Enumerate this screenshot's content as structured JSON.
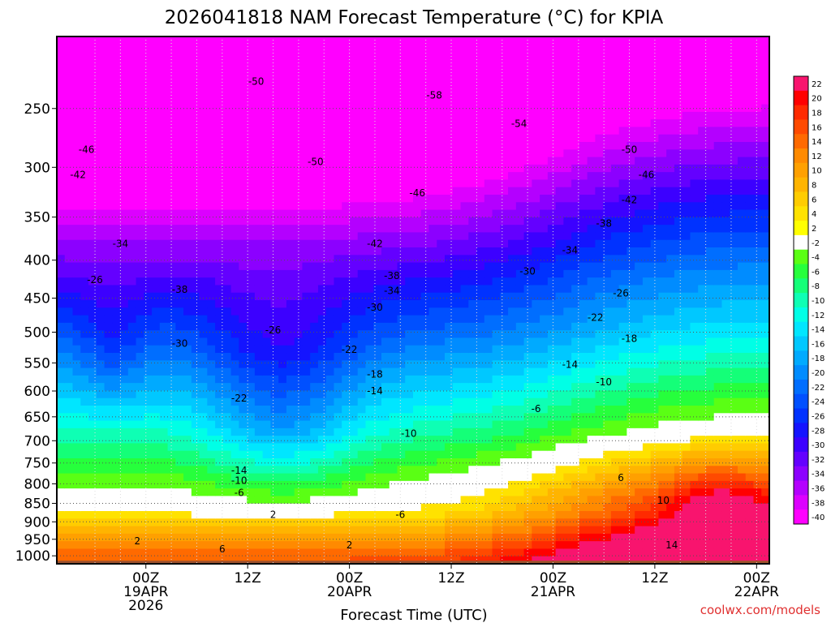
{
  "chart_data": {
    "type": "heatmap",
    "title": "2026041818 NAM Forecast Temperature (°C) for KPIA",
    "xlabel": "Forecast Time (UTC)",
    "credit": "coolwx.com/models",
    "y_scale": "pressure (hPa), reversed",
    "ylim": [
      1025,
      200
    ],
    "y_ticks": [
      250,
      300,
      350,
      400,
      450,
      500,
      550,
      600,
      650,
      700,
      750,
      800,
      850,
      900,
      950,
      1000
    ],
    "x_range_hours_from_init": [
      -4.5,
      79.5
    ],
    "x_ticks": [
      {
        "hour": 6,
        "lines": [
          "00Z",
          "19APR",
          "2026"
        ]
      },
      {
        "hour": 18,
        "lines": [
          "12Z"
        ]
      },
      {
        "hour": 30,
        "lines": [
          "00Z",
          "20APR"
        ]
      },
      {
        "hour": 42,
        "lines": [
          "12Z"
        ]
      },
      {
        "hour": 54,
        "lines": [
          "00Z",
          "21APR"
        ]
      },
      {
        "hour": 66,
        "lines": [
          "12Z"
        ]
      },
      {
        "hour": 78,
        "lines": [
          "00Z",
          "22APR"
        ]
      }
    ],
    "grid": true,
    "colorbar": {
      "labels": [
        22,
        20,
        18,
        16,
        14,
        12,
        10,
        8,
        6,
        4,
        2,
        -2,
        -4,
        -6,
        -8,
        -10,
        -12,
        -14,
        -16,
        -18,
        -20,
        -22,
        -24,
        -26,
        -28,
        -30,
        -32,
        -34,
        -36,
        -38,
        -40
      ],
      "colors": [
        "#f8146e",
        "#ff0000",
        "#ff2a00",
        "#ff4a00",
        "#ff6a00",
        "#ff8a00",
        "#ffa000",
        "#ffb400",
        "#ffcc00",
        "#ffe200",
        "#ffff00",
        "#ffffff",
        "#5aff14",
        "#26ff3c",
        "#14ff78",
        "#0effb4",
        "#00ffe6",
        "#00e6ff",
        "#00c8ff",
        "#00aaff",
        "#008cff",
        "#006eff",
        "#0050ff",
        "#0032ff",
        "#1414ff",
        "#3c00ff",
        "#6400ff",
        "#8c00ff",
        "#b400ff",
        "#dc00ff",
        "#ff00ff"
      ]
    },
    "contour_labels": [
      {
        "hour": 19,
        "p": 230,
        "v": "-50"
      },
      {
        "hour": 40,
        "p": 240,
        "v": "-58"
      },
      {
        "hour": 50,
        "p": 262,
        "v": "-54"
      },
      {
        "hour": 63,
        "p": 284,
        "v": "-50"
      },
      {
        "hour": 65,
        "p": 307,
        "v": "-46"
      },
      {
        "hour": 63,
        "p": 332,
        "v": "-42"
      },
      {
        "hour": 60,
        "p": 357,
        "v": "-38"
      },
      {
        "hour": 56,
        "p": 388,
        "v": "-34"
      },
      {
        "hour": 51,
        "p": 414,
        "v": "-30"
      },
      {
        "hour": 62,
        "p": 443,
        "v": "-26"
      },
      {
        "hour": 59,
        "p": 478,
        "v": "-22"
      },
      {
        "hour": 63,
        "p": 510,
        "v": "-18"
      },
      {
        "hour": 56,
        "p": 553,
        "v": "-14"
      },
      {
        "hour": 60,
        "p": 584,
        "v": "-10"
      },
      {
        "hour": 52,
        "p": 634,
        "v": "-6"
      },
      {
        "hour": -1,
        "p": 284,
        "v": "-46"
      },
      {
        "hour": -2,
        "p": 307,
        "v": "-42"
      },
      {
        "hour": 3,
        "p": 380,
        "v": "-34"
      },
      {
        "hour": 0,
        "p": 425,
        "v": "-26"
      },
      {
        "hour": 10,
        "p": 438,
        "v": "-38"
      },
      {
        "hour": 10,
        "p": 518,
        "v": "-30"
      },
      {
        "hour": 21,
        "p": 497,
        "v": "-26"
      },
      {
        "hour": 17,
        "p": 614,
        "v": "-22"
      },
      {
        "hour": 17,
        "p": 768,
        "v": "-14"
      },
      {
        "hour": 17,
        "p": 792,
        "v": "-10"
      },
      {
        "hour": 17,
        "p": 823,
        "v": "-6"
      },
      {
        "hour": 21,
        "p": 880,
        "v": "2"
      },
      {
        "hour": 15,
        "p": 980,
        "v": "6"
      },
      {
        "hour": 5,
        "p": 955,
        "v": "2"
      },
      {
        "hour": 26,
        "p": 295,
        "v": "-50"
      },
      {
        "hour": 33,
        "p": 380,
        "v": "-42"
      },
      {
        "hour": 38,
        "p": 325,
        "v": "-46"
      },
      {
        "hour": 35,
        "p": 420,
        "v": "-38"
      },
      {
        "hour": 35,
        "p": 440,
        "v": "-34"
      },
      {
        "hour": 33,
        "p": 463,
        "v": "-30"
      },
      {
        "hour": 30,
        "p": 528,
        "v": "-22"
      },
      {
        "hour": 33,
        "p": 570,
        "v": "-18"
      },
      {
        "hour": 33,
        "p": 600,
        "v": "-14"
      },
      {
        "hour": 37,
        "p": 685,
        "v": "-10"
      },
      {
        "hour": 36,
        "p": 880,
        "v": "-6"
      },
      {
        "hour": 30,
        "p": 968,
        "v": "2"
      },
      {
        "hour": 62,
        "p": 785,
        "v": "6"
      },
      {
        "hour": 67,
        "p": 842,
        "v": "10"
      },
      {
        "hour": 68,
        "p": 968,
        "v": "14"
      }
    ]
  }
}
